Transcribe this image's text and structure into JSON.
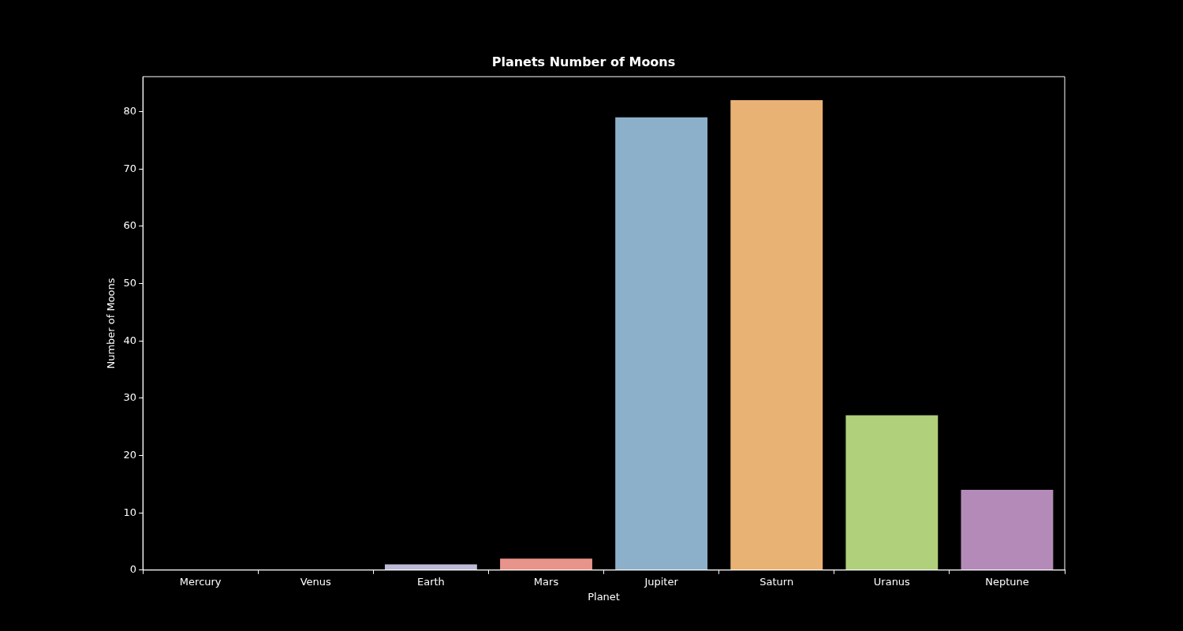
{
  "chart_data": {
    "type": "bar",
    "title": "Planets Number of Moons",
    "xlabel": "Planet",
    "ylabel": "Number of Moons",
    "categories": [
      "Mercury",
      "Venus",
      "Earth",
      "Mars",
      "Jupiter",
      "Saturn",
      "Uranus",
      "Neptune"
    ],
    "values": [
      0,
      0,
      1,
      2,
      79,
      82,
      27,
      14
    ],
    "colors": [
      "#93c8bf",
      "#f2f2bd",
      "#bcbad6",
      "#e8948a",
      "#8cb0c9",
      "#e9b275",
      "#b0d07b",
      "#b48bb8"
    ],
    "ylim": [
      0,
      86.1
    ],
    "yticks": [
      0,
      10,
      20,
      30,
      40,
      50,
      60,
      70,
      80
    ],
    "grid": false,
    "legend": false
  }
}
